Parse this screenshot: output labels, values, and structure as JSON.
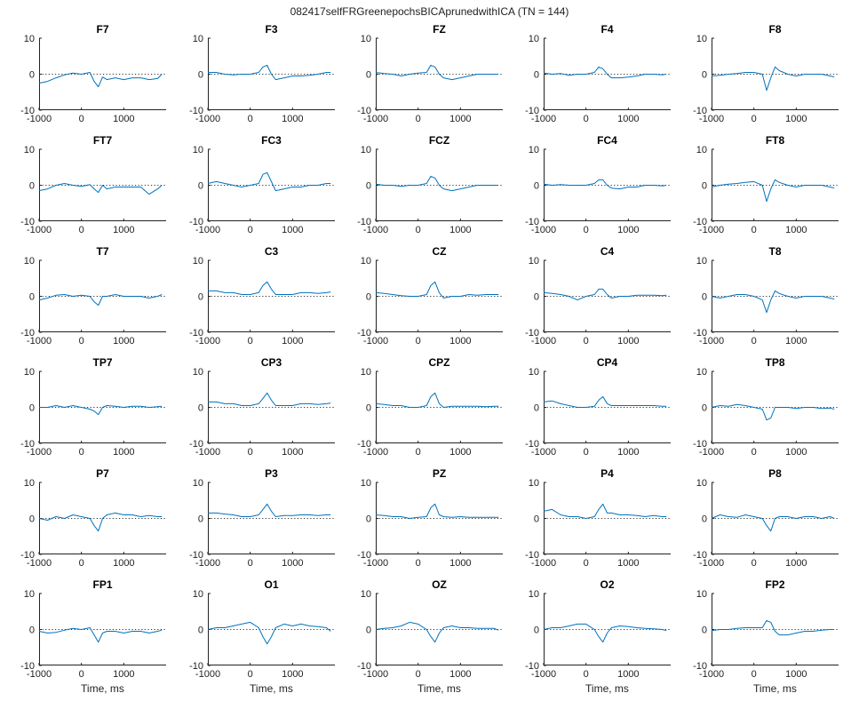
{
  "figure_title": "082417selfFRGreenepochsBICAprunedwithICA (TN = 144)",
  "chart_data": {
    "type": "line",
    "layout": "small-multiples",
    "rows": 6,
    "cols": 5,
    "xlim": [
      -1000,
      2000
    ],
    "ylim": [
      -10,
      10
    ],
    "xticks": [
      -1000,
      0,
      1000
    ],
    "yticks": [
      10,
      0,
      -10
    ],
    "xlabel": "Time, ms",
    "ylabel": "",
    "zero_line": true,
    "grid": false,
    "series_color": "#0072BD",
    "panels": [
      {
        "title": "F7",
        "x": [
          -1000,
          -800,
          -600,
          -400,
          -200,
          0,
          200,
          300,
          400,
          500,
          600,
          800,
          1000,
          1200,
          1400,
          1600,
          1800,
          1900
        ],
        "values": [
          -2.5,
          -2,
          -1,
          -0.2,
          0.3,
          0,
          0.5,
          -2,
          -3.5,
          -0.8,
          -1.5,
          -1,
          -1.5,
          -1,
          -1,
          -1.5,
          -1.2,
          0
        ]
      },
      {
        "title": "F3",
        "x": [
          -1000,
          -800,
          -600,
          -400,
          -200,
          0,
          200,
          300,
          400,
          500,
          600,
          800,
          1000,
          1200,
          1400,
          1600,
          1800,
          1900
        ],
        "values": [
          0.5,
          0.5,
          0,
          -0.2,
          0,
          0,
          0.5,
          2,
          2.5,
          0,
          -1.5,
          -1,
          -0.5,
          -0.5,
          -0.3,
          0,
          0.5,
          0.5
        ]
      },
      {
        "title": "FZ",
        "x": [
          -1000,
          -800,
          -600,
          -400,
          -200,
          0,
          200,
          300,
          400,
          500,
          600,
          800,
          1000,
          1200,
          1400,
          1600,
          1800,
          1900
        ],
        "values": [
          0.5,
          0.2,
          0,
          -0.5,
          0,
          0.3,
          0.5,
          2.5,
          2,
          0,
          -1,
          -1.5,
          -1,
          -0.5,
          0,
          0,
          0,
          0
        ]
      },
      {
        "title": "F4",
        "x": [
          -1000,
          -800,
          -600,
          -400,
          -200,
          0,
          200,
          300,
          400,
          500,
          600,
          800,
          1000,
          1200,
          1400,
          1600,
          1800,
          1900
        ],
        "values": [
          0.3,
          0,
          0.2,
          -0.3,
          0,
          0,
          0.5,
          2,
          1.5,
          0,
          -1,
          -1,
          -0.8,
          -0.5,
          0,
          0,
          -0.2,
          0
        ]
      },
      {
        "title": "F8",
        "x": [
          -1000,
          -800,
          -600,
          -400,
          -200,
          0,
          200,
          300,
          400,
          500,
          600,
          800,
          1000,
          1200,
          1400,
          1600,
          1800,
          1900
        ],
        "values": [
          -0.5,
          -0.3,
          0,
          0.2,
          0.5,
          0.5,
          0,
          -4.5,
          -1,
          2,
          1,
          0,
          -0.5,
          0,
          0,
          0,
          -0.5,
          -0.8
        ]
      },
      {
        "title": "FT7",
        "x": [
          -1000,
          -800,
          -600,
          -400,
          -200,
          0,
          200,
          300,
          400,
          500,
          600,
          800,
          1000,
          1200,
          1400,
          1600,
          1800,
          1900
        ],
        "values": [
          -1.5,
          -1,
          0,
          0.5,
          0,
          -0.3,
          0.2,
          -1,
          -2,
          0,
          -1,
          -0.5,
          -0.5,
          -0.5,
          -0.5,
          -2.5,
          -1,
          0
        ]
      },
      {
        "title": "FC3",
        "x": [
          -1000,
          -800,
          -600,
          -400,
          -200,
          0,
          200,
          300,
          400,
          500,
          600,
          800,
          1000,
          1200,
          1400,
          1600,
          1800,
          1900
        ],
        "values": [
          0.5,
          1,
          0.5,
          0,
          -0.5,
          0,
          0.5,
          3,
          3.5,
          1,
          -1.5,
          -1,
          -0.5,
          -0.5,
          0,
          0,
          0.5,
          0.5
        ]
      },
      {
        "title": "FCZ",
        "x": [
          -1000,
          -800,
          -600,
          -400,
          -200,
          0,
          200,
          300,
          400,
          500,
          600,
          800,
          1000,
          1200,
          1400,
          1600,
          1800,
          1900
        ],
        "values": [
          0.3,
          0,
          0,
          -0.3,
          0,
          0,
          0.5,
          2.5,
          2,
          0,
          -1,
          -1.5,
          -1,
          -0.5,
          0,
          0,
          0,
          0
        ]
      },
      {
        "title": "FC4",
        "x": [
          -1000,
          -800,
          -600,
          -400,
          -200,
          0,
          200,
          300,
          400,
          500,
          600,
          800,
          1000,
          1200,
          1400,
          1600,
          1800,
          1900
        ],
        "values": [
          0.3,
          0,
          0.2,
          0,
          0,
          0,
          0.5,
          1.5,
          1.5,
          0,
          -0.8,
          -1,
          -0.5,
          -0.5,
          0,
          0,
          -0.2,
          0
        ]
      },
      {
        "title": "FT8",
        "x": [
          -1000,
          -800,
          -600,
          -400,
          -200,
          0,
          200,
          300,
          400,
          500,
          600,
          800,
          1000,
          1200,
          1400,
          1600,
          1800,
          1900
        ],
        "values": [
          -0.5,
          0,
          0.3,
          0.5,
          0.8,
          1,
          0,
          -4.5,
          -1,
          1.5,
          0.8,
          0,
          -0.5,
          0,
          0,
          0,
          -0.5,
          -0.8
        ]
      },
      {
        "title": "T7",
        "x": [
          -1000,
          -800,
          -600,
          -400,
          -200,
          0,
          200,
          300,
          400,
          500,
          600,
          800,
          1000,
          1200,
          1400,
          1600,
          1800,
          1900
        ],
        "values": [
          -1,
          -0.5,
          0.3,
          0.5,
          0,
          0.3,
          0,
          -1.5,
          -2.5,
          0,
          0,
          0.5,
          0,
          0,
          0,
          -0.5,
          0,
          0.5
        ]
      },
      {
        "title": "C3",
        "x": [
          -1000,
          -800,
          -600,
          -400,
          -200,
          0,
          200,
          300,
          400,
          500,
          600,
          800,
          1000,
          1200,
          1400,
          1600,
          1800,
          1900
        ],
        "values": [
          1.5,
          1.5,
          1,
          1,
          0.5,
          0.5,
          1,
          3,
          4,
          2,
          0.5,
          0.5,
          0.5,
          1,
          1,
          0.8,
          1,
          1.2
        ]
      },
      {
        "title": "CZ",
        "x": [
          -1000,
          -800,
          -600,
          -400,
          -200,
          0,
          200,
          300,
          400,
          500,
          600,
          800,
          1000,
          1200,
          1400,
          1600,
          1800,
          1900
        ],
        "values": [
          1,
          0.8,
          0.5,
          0.2,
          0,
          0,
          0.5,
          3,
          4,
          1,
          -0.5,
          0,
          0,
          0.5,
          0.3,
          0.5,
          0.5,
          0.5
        ]
      },
      {
        "title": "C4",
        "x": [
          -1000,
          -800,
          -600,
          -400,
          -200,
          0,
          200,
          300,
          400,
          500,
          600,
          800,
          1000,
          1200,
          1400,
          1600,
          1800,
          1900
        ],
        "values": [
          1,
          0.8,
          0.5,
          0,
          -1,
          0,
          0.5,
          2,
          2,
          0.5,
          -0.5,
          0,
          0,
          0.3,
          0.3,
          0.3,
          0.2,
          0.3
        ]
      },
      {
        "title": "T8",
        "x": [
          -1000,
          -800,
          -600,
          -400,
          -200,
          0,
          200,
          300,
          400,
          500,
          600,
          800,
          1000,
          1200,
          1400,
          1600,
          1800,
          1900
        ],
        "values": [
          0,
          -0.5,
          0,
          0.5,
          0.5,
          0,
          -1,
          -4.5,
          -1,
          1.5,
          0.8,
          0,
          -0.5,
          0,
          0,
          0,
          -0.5,
          -0.8
        ]
      },
      {
        "title": "TP7",
        "x": [
          -1000,
          -800,
          -600,
          -400,
          -200,
          0,
          200,
          300,
          400,
          500,
          600,
          800,
          1000,
          1200,
          1400,
          1600,
          1800,
          1900
        ],
        "values": [
          0,
          0,
          0.5,
          0,
          0.5,
          0,
          -0.5,
          -1,
          -2,
          0,
          0.5,
          0.3,
          0,
          0.3,
          0.3,
          0,
          0.2,
          0.3
        ]
      },
      {
        "title": "CP3",
        "x": [
          -1000,
          -800,
          -600,
          -400,
          -200,
          0,
          200,
          300,
          400,
          500,
          600,
          800,
          1000,
          1200,
          1400,
          1600,
          1800,
          1900
        ],
        "values": [
          1.5,
          1.5,
          1,
          1,
          0.5,
          0.5,
          1,
          2.5,
          4,
          2,
          0.5,
          0.5,
          0.5,
          1,
          1,
          0.8,
          1,
          1.2
        ]
      },
      {
        "title": "CPZ",
        "x": [
          -1000,
          -800,
          -600,
          -400,
          -200,
          0,
          200,
          300,
          400,
          500,
          600,
          800,
          1000,
          1200,
          1400,
          1600,
          1800,
          1900
        ],
        "values": [
          1,
          0.8,
          0.5,
          0.5,
          0,
          0,
          0.5,
          3,
          4,
          1,
          0,
          0.3,
          0.3,
          0.3,
          0.3,
          0.2,
          0.3,
          0.3
        ]
      },
      {
        "title": "CP4",
        "x": [
          -1000,
          -800,
          -600,
          -400,
          -200,
          0,
          200,
          300,
          400,
          500,
          600,
          800,
          1000,
          1200,
          1400,
          1600,
          1800,
          1900
        ],
        "values": [
          1.5,
          1.8,
          1,
          0.5,
          0,
          0,
          0.3,
          2,
          3,
          1,
          0.5,
          0.5,
          0.5,
          0.5,
          0.5,
          0.5,
          0.3,
          0.3
        ]
      },
      {
        "title": "TP8",
        "x": [
          -1000,
          -800,
          -600,
          -400,
          -200,
          0,
          200,
          300,
          400,
          500,
          600,
          800,
          1000,
          1200,
          1400,
          1600,
          1800,
          1900
        ],
        "values": [
          0,
          0.5,
          0.3,
          0.8,
          0.5,
          0,
          -0.5,
          -3.5,
          -3,
          0,
          0,
          0,
          -0.3,
          0,
          0,
          -0.3,
          -0.2,
          -0.5
        ]
      },
      {
        "title": "P7",
        "x": [
          -1000,
          -800,
          -600,
          -400,
          -200,
          0,
          200,
          300,
          400,
          500,
          600,
          800,
          1000,
          1200,
          1400,
          1600,
          1800,
          1900
        ],
        "values": [
          0,
          -0.5,
          0.5,
          0,
          1,
          0.5,
          0,
          -2,
          -3.5,
          0,
          1,
          1.5,
          1,
          1,
          0.5,
          0.8,
          0.5,
          0.5
        ]
      },
      {
        "title": "P3",
        "x": [
          -1000,
          -800,
          -600,
          -400,
          -200,
          0,
          200,
          300,
          400,
          500,
          600,
          800,
          1000,
          1200,
          1400,
          1600,
          1800,
          1900
        ],
        "values": [
          1.5,
          1.5,
          1.2,
          1,
          0.5,
          0.5,
          1,
          2.5,
          4,
          2,
          0.5,
          0.8,
          0.8,
          1,
          1,
          0.8,
          1,
          1
        ]
      },
      {
        "title": "PZ",
        "x": [
          -1000,
          -800,
          -600,
          -400,
          -200,
          0,
          200,
          300,
          400,
          500,
          600,
          800,
          1000,
          1200,
          1400,
          1600,
          1800,
          1900
        ],
        "values": [
          1,
          0.8,
          0.5,
          0.5,
          0,
          0.3,
          0.5,
          3,
          4,
          1,
          0.5,
          0.3,
          0.5,
          0.3,
          0.3,
          0.3,
          0.3,
          0.3
        ]
      },
      {
        "title": "P4",
        "x": [
          -1000,
          -800,
          -600,
          -400,
          -200,
          0,
          200,
          300,
          400,
          500,
          600,
          800,
          1000,
          1200,
          1400,
          1600,
          1800,
          1900
        ],
        "values": [
          2,
          2.5,
          1,
          0.5,
          0.5,
          0,
          0.5,
          2.5,
          4,
          1.5,
          1.5,
          1,
          1,
          0.8,
          0.5,
          0.8,
          0.5,
          0.5
        ]
      },
      {
        "title": "P8",
        "x": [
          -1000,
          -800,
          -600,
          -400,
          -200,
          0,
          200,
          300,
          400,
          500,
          600,
          800,
          1000,
          1200,
          1400,
          1600,
          1800,
          1900
        ],
        "values": [
          0,
          1,
          0.5,
          0.3,
          1,
          0.5,
          0,
          -2,
          -3.5,
          0,
          0.5,
          0.5,
          0,
          0.5,
          0.5,
          0,
          0.5,
          0
        ]
      },
      {
        "title": "FP1",
        "x": [
          -1000,
          -800,
          -600,
          -400,
          -200,
          0,
          200,
          300,
          400,
          500,
          600,
          800,
          1000,
          1200,
          1400,
          1600,
          1800,
          1900
        ],
        "values": [
          -0.5,
          -1,
          -0.8,
          -0.2,
          0.3,
          0,
          0.5,
          -1.5,
          -3.5,
          -1,
          -0.5,
          -0.5,
          -1,
          -0.5,
          -0.5,
          -1,
          -0.5,
          -0.2
        ]
      },
      {
        "title": "O1",
        "x": [
          -1000,
          -800,
          -600,
          -400,
          -200,
          0,
          200,
          300,
          400,
          500,
          600,
          800,
          1000,
          1200,
          1400,
          1600,
          1800,
          1900
        ],
        "values": [
          0,
          0.5,
          0.5,
          1,
          1.5,
          2,
          0.5,
          -2,
          -4,
          -2,
          0.5,
          1.5,
          1,
          1.5,
          1,
          0.8,
          0.5,
          -0.5
        ]
      },
      {
        "title": "OZ",
        "x": [
          -1000,
          -800,
          -600,
          -400,
          -200,
          0,
          200,
          300,
          400,
          500,
          600,
          800,
          1000,
          1200,
          1400,
          1600,
          1800,
          1900
        ],
        "values": [
          0,
          0.3,
          0.5,
          1,
          2,
          1.5,
          0,
          -2,
          -3.5,
          -1,
          0.5,
          1,
          0.5,
          0.5,
          0.3,
          0.3,
          0.3,
          -0.2
        ]
      },
      {
        "title": "O2",
        "x": [
          -1000,
          -800,
          -600,
          -400,
          -200,
          0,
          200,
          300,
          400,
          500,
          600,
          800,
          1000,
          1200,
          1400,
          1600,
          1800,
          1900
        ],
        "values": [
          0,
          0.5,
          0.5,
          1,
          1.5,
          1.5,
          0,
          -2,
          -3.5,
          -1,
          0.5,
          1,
          0.8,
          0.5,
          0.3,
          0.2,
          0,
          -0.3
        ]
      },
      {
        "title": "FP2",
        "x": [
          -1000,
          -800,
          -600,
          -400,
          -200,
          0,
          200,
          300,
          400,
          500,
          600,
          800,
          1000,
          1200,
          1400,
          1600,
          1800,
          1900
        ],
        "values": [
          -0.3,
          0,
          0,
          0.3,
          0.5,
          0.5,
          0.5,
          2.5,
          2,
          -0.5,
          -1.5,
          -1.5,
          -1,
          -0.5,
          -0.5,
          -0.2,
          0,
          0
        ]
      }
    ]
  }
}
